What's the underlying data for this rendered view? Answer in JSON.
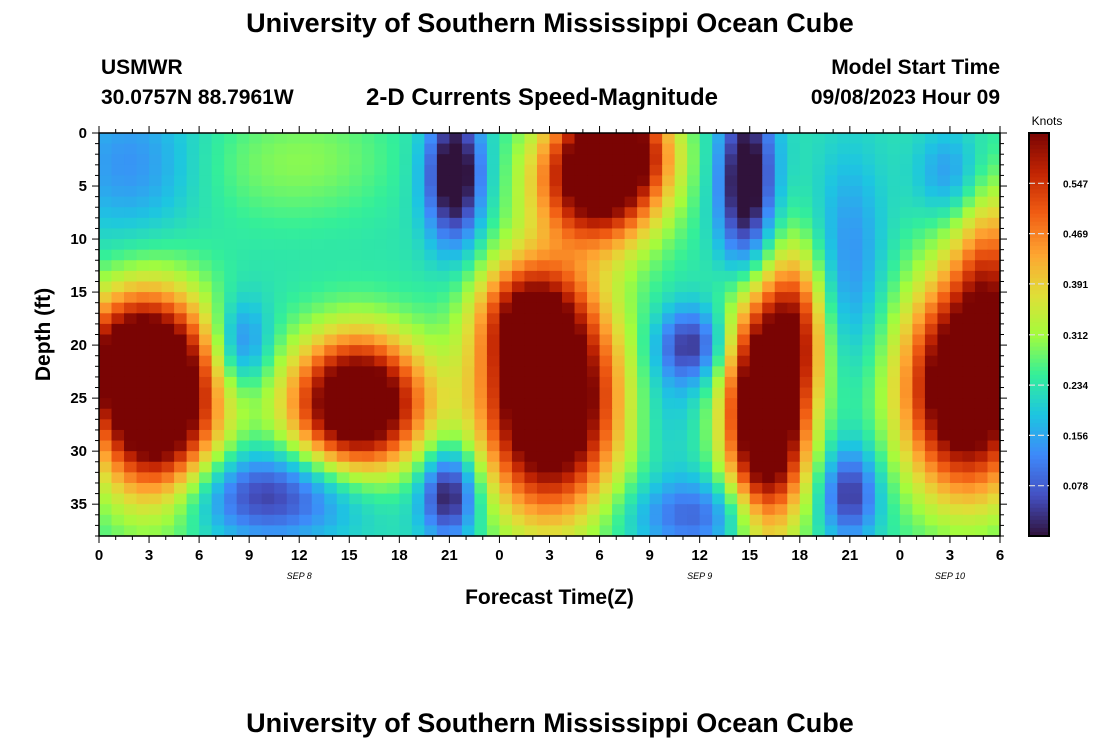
{
  "header": {
    "title": "University of Southern Mississippi Ocean Cube",
    "station": "USMWR",
    "coords": "30.0757N  88.7961W",
    "subtitle": "2-D Currents Speed-Magnitude",
    "model_label": "Model Start Time",
    "model_time": "09/08/2023 Hour 09"
  },
  "footer": {
    "title": "University of Southern Mississippi Ocean Cube"
  },
  "colors": {
    "low": "#30123b",
    "mid": "#a4fc3c",
    "high": "#7a0403"
  },
  "chart_data": {
    "type": "heatmap",
    "xlabel": "Forecast Time(Z)",
    "ylabel": "Depth (ft)",
    "colorbar_label": "Knots",
    "colorbar_ticks": [
      "0.547",
      "0.469",
      "0.391",
      "0.312",
      "0.234",
      "0.156",
      "0.078"
    ],
    "colorbar_values": [
      0.547,
      0.469,
      0.391,
      0.312,
      0.234,
      0.156,
      0.078
    ],
    "value_range": [
      0,
      0.625
    ],
    "x_range_hours": [
      0,
      54
    ],
    "x_tick_labels": [
      "0",
      "3",
      "6",
      "9",
      "12",
      "15",
      "18",
      "21",
      "0",
      "3",
      "6",
      "9",
      "12",
      "15",
      "18",
      "21",
      "0",
      "3",
      "6"
    ],
    "x_ticks_hours": [
      0,
      3,
      6,
      9,
      12,
      15,
      18,
      21,
      24,
      27,
      30,
      33,
      36,
      39,
      42,
      45,
      48,
      51,
      54
    ],
    "date_labels": [
      {
        "label": "SEP 8",
        "hour": 12
      },
      {
        "label": "SEP 9",
        "hour": 36
      },
      {
        "label": "SEP 10",
        "hour": 51
      }
    ],
    "y_range": [
      0,
      38
    ],
    "y_ticks": [
      0,
      5,
      10,
      15,
      20,
      25,
      30,
      35
    ],
    "y_tick_labels": [
      "0",
      "5",
      "10",
      "15",
      "20",
      "25",
      "30",
      "35"
    ],
    "grid": false,
    "features": [
      {
        "x": 3.5,
        "y": 25.5,
        "sx": 2.6,
        "sy": 6.5,
        "v": 0.55
      },
      {
        "x": 1.5,
        "y": 21,
        "sx": 2.5,
        "sy": 4,
        "v": 0.25
      },
      {
        "x": 15.5,
        "y": 25.5,
        "sx": 2.8,
        "sy": 4.5,
        "v": 0.55
      },
      {
        "x": 27,
        "y": 25,
        "sx": 2.8,
        "sy": 7.5,
        "v": 0.6
      },
      {
        "x": 25.5,
        "y": 17,
        "sx": 2,
        "sy": 3.5,
        "v": 0.2
      },
      {
        "x": 30,
        "y": 4,
        "sx": 2.6,
        "sy": 4.5,
        "v": 0.5
      },
      {
        "x": 31.5,
        "y": 1,
        "sx": 2,
        "sy": 3,
        "v": 0.2
      },
      {
        "x": 40,
        "y": 26,
        "sx": 1.7,
        "sy": 8,
        "v": 0.6
      },
      {
        "x": 42,
        "y": 18,
        "sx": 1.2,
        "sy": 5,
        "v": 0.2
      },
      {
        "x": 52,
        "y": 24,
        "sx": 2.7,
        "sy": 7,
        "v": 0.55
      },
      {
        "x": 53.5,
        "y": 13,
        "sx": 1.6,
        "sy": 6,
        "v": 0.2
      },
      {
        "x": 10,
        "y": 3,
        "sx": 4,
        "sy": 4,
        "v": 0.05
      },
      {
        "x": 14,
        "y": 2,
        "sx": 3,
        "sy": 4,
        "v": 0.03
      },
      {
        "x": 21.3,
        "y": 4,
        "sx": 1.2,
        "sy": 4.5,
        "v": -0.3
      },
      {
        "x": 21,
        "y": 34,
        "sx": 1.2,
        "sy": 3,
        "v": -0.25
      },
      {
        "x": 10,
        "y": 34,
        "sx": 4,
        "sy": 3,
        "v": -0.2
      },
      {
        "x": 8.5,
        "y": 20,
        "sx": 1.2,
        "sy": 3,
        "v": -0.15
      },
      {
        "x": 38.8,
        "y": 5,
        "sx": 1.2,
        "sy": 6,
        "v": -0.3
      },
      {
        "x": 35.5,
        "y": 20,
        "sx": 1.5,
        "sy": 2.5,
        "v": -0.2
      },
      {
        "x": 45,
        "y": 34,
        "sx": 1.2,
        "sy": 3,
        "v": -0.2
      },
      {
        "x": 45,
        "y": 12,
        "sx": 1.5,
        "sy": 7,
        "v": -0.1
      },
      {
        "x": 51,
        "y": 4,
        "sx": 1.4,
        "sy": 3,
        "v": -0.1
      },
      {
        "x": 36,
        "y": 36,
        "sx": 3,
        "sy": 2.5,
        "v": -0.15
      },
      {
        "x": 2,
        "y": 3,
        "sx": 3,
        "sy": 5,
        "v": -0.1
      },
      {
        "x": 34,
        "y": 26,
        "sx": 1.3,
        "sy": 4,
        "v": -0.05
      }
    ]
  }
}
